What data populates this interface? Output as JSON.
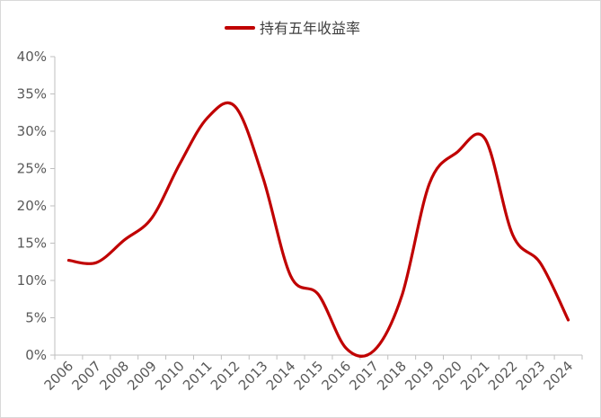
{
  "chart_data": {
    "type": "line",
    "title": "",
    "xlabel": "",
    "ylabel": "",
    "categories": [
      "2006",
      "2007",
      "2008",
      "2009",
      "2010",
      "2011",
      "2012",
      "2013",
      "2014",
      "2015",
      "2016",
      "2017",
      "2018",
      "2019",
      "2020",
      "2021",
      "2022",
      "2023",
      "2024"
    ],
    "series": [
      {
        "name": "持有五年收益率",
        "color": "#c00000",
        "values": [
          12.7,
          12.4,
          15.4,
          18.4,
          25.6,
          31.8,
          33.3,
          23.8,
          10.6,
          8.1,
          0.9,
          0.6,
          7.9,
          23.0,
          27.2,
          29.0,
          16.1,
          12.3,
          4.7
        ]
      }
    ],
    "ylim": [
      0,
      40
    ],
    "yticks": [
      "0%",
      "5%",
      "10%",
      "15%",
      "20%",
      "25%",
      "30%",
      "35%",
      "40%"
    ],
    "grid": false,
    "legend_position": "top-center"
  }
}
